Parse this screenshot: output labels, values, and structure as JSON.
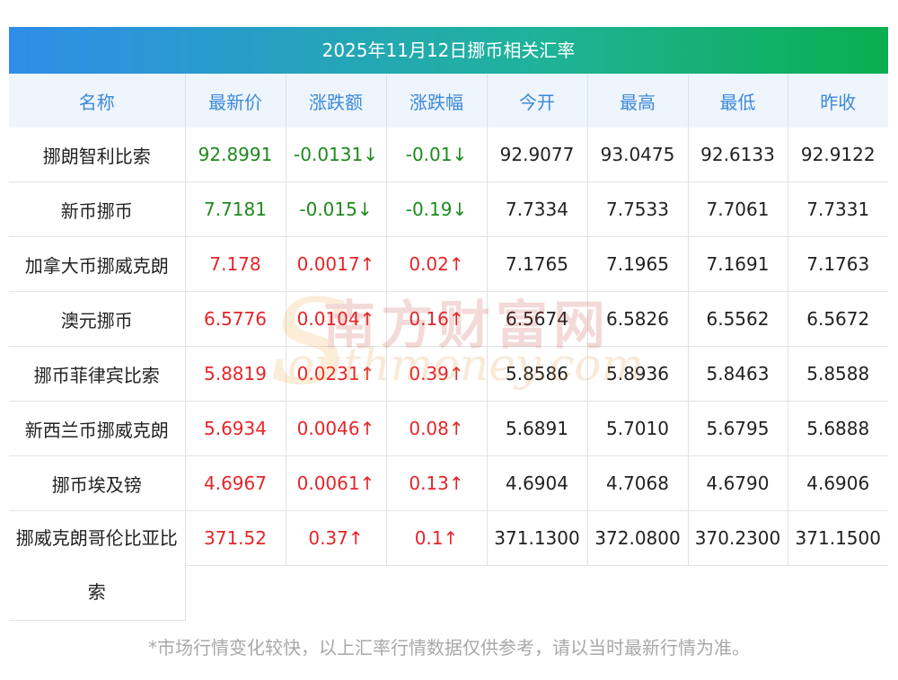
{
  "chart_data": {
    "type": "table",
    "title": "2025年11月12日挪币相关汇率",
    "columns": [
      "名称",
      "最新价",
      "涨跌额",
      "涨跌幅",
      "今开",
      "最高",
      "最低",
      "昨收"
    ],
    "rows": [
      {
        "name": "挪朗智利比索",
        "latest": "92.8991",
        "change": "-0.0131↓",
        "pct": "-0.01↓",
        "open": "92.9077",
        "high": "93.0475",
        "low": "92.6133",
        "prev": "92.9122",
        "dir": "down"
      },
      {
        "name": "新币挪币",
        "latest": "7.7181",
        "change": "-0.015↓",
        "pct": "-0.19↓",
        "open": "7.7334",
        "high": "7.7533",
        "low": "7.7061",
        "prev": "7.7331",
        "dir": "down"
      },
      {
        "name": "加拿大币挪威克朗",
        "latest": "7.178",
        "change": "0.0017↑",
        "pct": "0.02↑",
        "open": "7.1765",
        "high": "7.1965",
        "low": "7.1691",
        "prev": "7.1763",
        "dir": "up"
      },
      {
        "name": "澳元挪币",
        "latest": "6.5776",
        "change": "0.0104↑",
        "pct": "0.16↑",
        "open": "6.5674",
        "high": "6.5826",
        "low": "6.5562",
        "prev": "6.5672",
        "dir": "up"
      },
      {
        "name": "挪币菲律宾比索",
        "latest": "5.8819",
        "change": "0.0231↑",
        "pct": "0.39↑",
        "open": "5.8586",
        "high": "5.8936",
        "low": "5.8463",
        "prev": "5.8588",
        "dir": "up"
      },
      {
        "name": "新西兰币挪威克朗",
        "latest": "5.6934",
        "change": "0.0046↑",
        "pct": "0.08↑",
        "open": "5.6891",
        "high": "5.7010",
        "low": "5.6795",
        "prev": "5.6888",
        "dir": "up"
      },
      {
        "name": "挪币埃及镑",
        "latest": "4.6967",
        "change": "0.0061↑",
        "pct": "0.13↑",
        "open": "4.6904",
        "high": "4.7068",
        "low": "4.6790",
        "prev": "4.6906",
        "dir": "up"
      },
      {
        "name": "挪威克朗哥伦比亚比索",
        "latest": "371.52",
        "change": "0.37↑",
        "pct": "0.1↑",
        "open": "371.1300",
        "high": "372.0800",
        "low": "370.2300",
        "prev": "371.1500",
        "dir": "up"
      }
    ],
    "colors": {
      "up": "#e5252a",
      "down": "#1e8a1e"
    }
  },
  "footnote": "*市场行情变化较快，以上汇率行情数据仅供参考，请以当时最新行情为准。",
  "watermark": {
    "cn": "南方财富网",
    "en": "outhmoney.com",
    "s": "S"
  }
}
